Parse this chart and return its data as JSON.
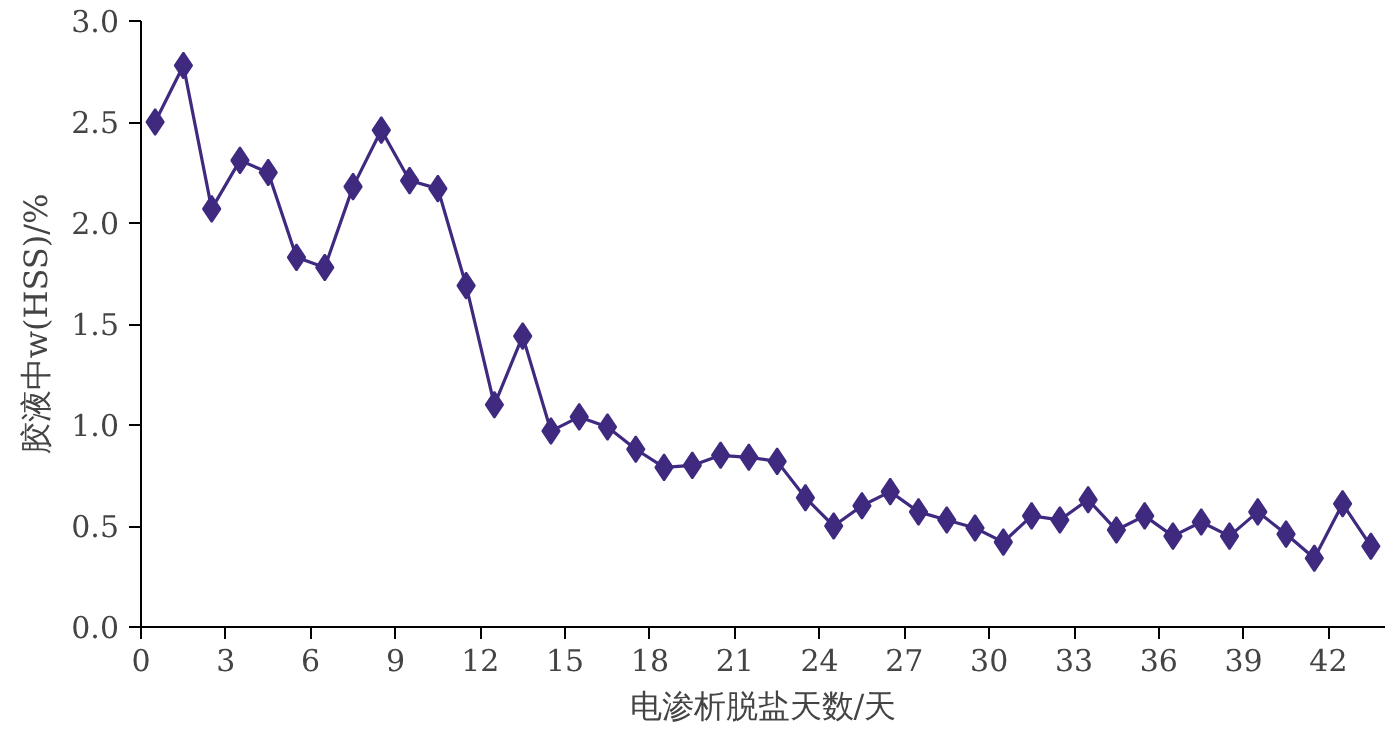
{
  "chart_data": {
    "type": "line",
    "xlabel": "电渗析脱盐天数/天",
    "ylabel": "胶液中w(HSS)/%",
    "x": [
      0.5,
      1.5,
      2.5,
      3.5,
      4.5,
      5.5,
      6.5,
      7.5,
      8.5,
      9.5,
      10.5,
      11.5,
      12.5,
      13.5,
      14.5,
      15.5,
      16.5,
      17.5,
      18.5,
      19.5,
      20.5,
      21.5,
      22.5,
      23.5,
      24.5,
      25.5,
      26.5,
      27.5,
      28.5,
      29.5,
      30.5,
      31.5,
      32.5,
      33.5,
      34.5,
      35.5,
      36.5,
      37.5,
      38.5,
      39.5,
      40.5,
      41.5,
      42.5,
      43.5
    ],
    "series": [
      {
        "color": "#3f2a80",
        "values": [
          2.5,
          2.78,
          2.07,
          2.31,
          2.25,
          1.83,
          1.78,
          2.18,
          2.46,
          2.21,
          2.17,
          1.69,
          1.1,
          1.44,
          0.97,
          1.04,
          0.99,
          0.88,
          0.79,
          0.8,
          0.85,
          0.84,
          0.82,
          0.64,
          0.5,
          0.6,
          0.67,
          0.57,
          0.53,
          0.49,
          0.42,
          0.55,
          0.53,
          0.63,
          0.48,
          0.55,
          0.45,
          0.52,
          0.45,
          0.57,
          0.46,
          0.34,
          0.61,
          0.4
        ]
      }
    ],
    "xlim": [
      0,
      44
    ],
    "xticks": [
      0,
      3,
      6,
      9,
      12,
      15,
      18,
      21,
      24,
      27,
      30,
      33,
      36,
      39,
      42
    ],
    "ylim": [
      0,
      3
    ],
    "yticks": [
      {
        "value": 0,
        "label": "0.0"
      },
      0.5,
      {
        "value": 1,
        "label": "1.0"
      },
      1.5,
      {
        "value": 2,
        "label": "2.0"
      },
      2.5,
      {
        "value": 3,
        "label": "3.0"
      }
    ],
    "grid": false,
    "marker": "diamond",
    "line_style": "solid"
  }
}
